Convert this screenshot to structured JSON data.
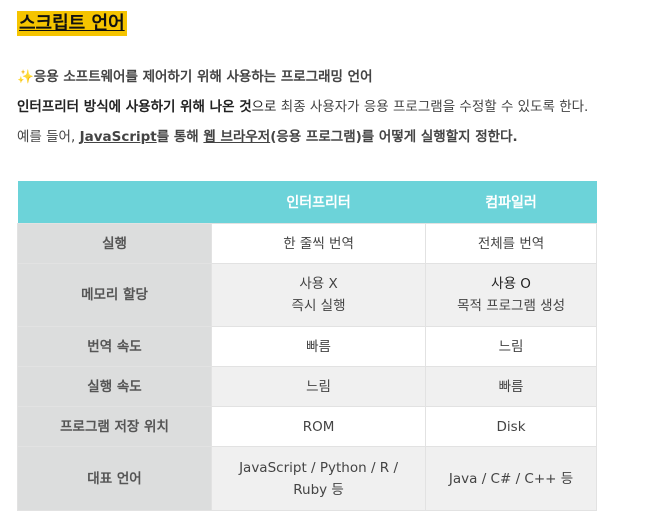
{
  "title": "스크립트 언어",
  "line1": {
    "icon": "sparkles",
    "text": "응용 소프트웨어를 제어하기 위해 사용하는 프로그래밍 언어"
  },
  "line2": {
    "bold": "인터프리터 방식에 사용하기 위해 나온 것",
    "bold2": "으로",
    "rest": " 최종 사용자가 응용 프로그램을 수정할 수 있도록 한다."
  },
  "line3": {
    "a": "예를 들어, ",
    "link1": "JavaScript",
    "b": "를 통해 ",
    "link2": "웹 브라우저",
    "c": "(응용 프로그램)를 어떻게 실행할지 정한다."
  },
  "table": {
    "headers": [
      "",
      "인터프리터",
      "컴파일러"
    ],
    "header_color": "#6cd3d9",
    "rows": [
      {
        "label": "실행",
        "c1": [
          "한 줄씩 번역"
        ],
        "c2": [
          "전체를 번역"
        ]
      },
      {
        "label": "메모리 할당",
        "c1": [
          "사용 X",
          "즉시 실행"
        ],
        "c2": [
          "사용 O",
          "목적 프로그램 생성"
        ]
      },
      {
        "label": "번역 속도",
        "c1": [
          "빠름"
        ],
        "c2": [
          "느림"
        ]
      },
      {
        "label": "실행 속도",
        "c1": [
          "느림"
        ],
        "c2": [
          "빠름"
        ]
      },
      {
        "label": "프로그램 저장 위치",
        "c1": [
          "ROM"
        ],
        "c2": [
          "Disk"
        ]
      },
      {
        "label": "대표 언어",
        "c1": [
          "JavaScript / Python / R /",
          "Ruby 등"
        ],
        "c2": [
          "Java / C# / C++ 등"
        ]
      }
    ]
  }
}
